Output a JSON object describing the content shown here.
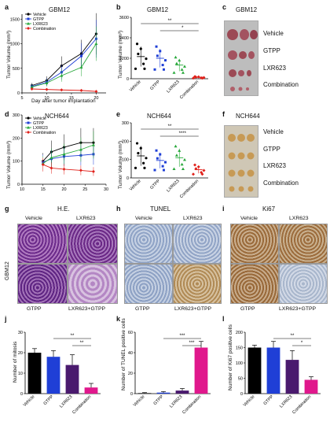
{
  "panel_labels": [
    "a",
    "b",
    "c",
    "d",
    "e",
    "f",
    "g",
    "h",
    "i",
    "j",
    "k",
    "l"
  ],
  "a": {
    "title": "GBM12",
    "ylabel": "Tumor Volume (mm³)",
    "xlabel": "Day after tumor implantation",
    "yticks": [
      "0",
      "500",
      "1000",
      "1500"
    ],
    "xticks": [
      "5",
      "10",
      "15",
      "20"
    ],
    "legend": [
      "Vehicle",
      "GTPP",
      "LXR623",
      "Combination"
    ]
  },
  "b": {
    "title": "GBM12",
    "ylabel": "Tumor Volume (mm³)",
    "yticks": [
      "0",
      "1200",
      "2400",
      "3600"
    ],
    "groups": [
      "Vehicle",
      "GTPP",
      "LXR623",
      "Combination"
    ],
    "sig": [
      "**",
      "*"
    ]
  },
  "c": {
    "title": "GBM12",
    "rows": [
      "Vehicle",
      "GTPP",
      "LXR623",
      "Combination"
    ]
  },
  "d": {
    "title": "NCH644",
    "ylabel": "Tumor Volume (mm³)",
    "yticks": [
      "0",
      "100",
      "200",
      "300"
    ],
    "xticks": [
      "10",
      "15",
      "20",
      "25",
      "30"
    ],
    "legend": [
      "Vehicle",
      "GTPP",
      "LXR623",
      "Combination"
    ]
  },
  "e": {
    "title": "NCH644",
    "ylabel": "Tumor Volume (mm³)",
    "yticks": [
      "0",
      "100",
      "200",
      "300"
    ],
    "groups": [
      "Vehicle",
      "GTPP",
      "LXR623",
      "Combination"
    ],
    "sig": [
      "**",
      "****"
    ]
  },
  "f": {
    "title": "NCH644",
    "rows": [
      "Vehicle",
      "GTPP",
      "LXR623",
      "Combination"
    ]
  },
  "g": {
    "title": "H.E.",
    "col_top": [
      "Vehicle",
      "LXR623"
    ],
    "col_bottom": [
      "GTPP",
      "LXR623+GTPP"
    ],
    "side": "GBM12"
  },
  "h": {
    "title": "TUNEL",
    "col_top": [
      "Vehicle",
      "LXR623"
    ],
    "col_bottom": [
      "GTPP",
      "LXR623+GTPP"
    ]
  },
  "i": {
    "title": "Ki67",
    "col_top": [
      "Vehicle",
      "LXR623"
    ],
    "col_bottom": [
      "GTPP",
      "LXR623+GTPP"
    ]
  },
  "j": {
    "ylabel": "Number of mitosis",
    "yticks": [
      "0",
      "10",
      "20",
      "30"
    ],
    "groups": [
      "Vehicle",
      "GTPP",
      "LXR623",
      "Combination"
    ],
    "sig": [
      "**",
      "**"
    ]
  },
  "k": {
    "ylabel": "Number of TUNEL positive cells",
    "yticks": [
      "0",
      "20",
      "40",
      "60"
    ],
    "groups": [
      "Vehicle",
      "GTPP",
      "LXR623",
      "Combination"
    ],
    "sig": [
      "***",
      "***"
    ]
  },
  "l": {
    "ylabel": "Number of Ki67 positive cells",
    "yticks": [
      "0",
      "50",
      "100",
      "150",
      "200"
    ],
    "groups": [
      "Vehicle",
      "GTPP",
      "LXR623",
      "Combination"
    ],
    "sig": [
      "**",
      "*"
    ]
  },
  "colors": {
    "vehicle": "#000000",
    "gtpp": "#1f3fd6",
    "lxr623": "#27a83a",
    "combination": "#e0201a",
    "bar_comb": "#e0188c"
  },
  "chart_data": [
    {
      "type": "line",
      "panel": "a",
      "x": [
        7,
        10,
        13,
        17,
        20
      ],
      "series": [
        {
          "name": "Vehicle",
          "values": [
            150,
            250,
            550,
            800,
            1200
          ]
        },
        {
          "name": "GTPP",
          "values": [
            130,
            220,
            420,
            750,
            1100
          ]
        },
        {
          "name": "LXR623",
          "values": [
            120,
            200,
            350,
            520,
            1000
          ]
        },
        {
          "name": "Combination",
          "values": [
            80,
            70,
            60,
            50,
            30
          ]
        }
      ],
      "ylim": [
        0,
        1600
      ],
      "xlim": [
        5,
        22
      ]
    },
    {
      "type": "scatter",
      "panel": "b",
      "categories": [
        "Vehicle",
        "GTPP",
        "LXR623",
        "Combination"
      ],
      "values": [
        1300,
        1200,
        800,
        80
      ],
      "ylim": [
        0,
        3600
      ]
    },
    {
      "type": "line",
      "panel": "d",
      "x": [
        15,
        17,
        20,
        24,
        27
      ],
      "series": [
        {
          "name": "Vehicle",
          "values": [
            100,
            140,
            160,
            180,
            180
          ]
        },
        {
          "name": "GTPP",
          "values": [
            95,
            110,
            120,
            125,
            130
          ]
        },
        {
          "name": "LXR623",
          "values": [
            90,
            115,
            130,
            150,
            170
          ]
        },
        {
          "name": "Combination",
          "values": [
            85,
            70,
            65,
            60,
            55
          ]
        }
      ],
      "ylim": [
        0,
        300
      ],
      "xlim": [
        10,
        30
      ]
    },
    {
      "type": "scatter",
      "panel": "e",
      "categories": [
        "Vehicle",
        "GTPP",
        "LXR623",
        "Combination"
      ],
      "values": [
        120,
        95,
        110,
        45
      ],
      "ylim": [
        0,
        300
      ]
    },
    {
      "type": "bar",
      "panel": "j",
      "categories": [
        "Vehicle",
        "GTPP",
        "LXR623",
        "Combination"
      ],
      "values": [
        20,
        18,
        14,
        3
      ],
      "errors": [
        2,
        3,
        5,
        2
      ],
      "ylim": [
        0,
        30
      ]
    },
    {
      "type": "bar",
      "panel": "k",
      "categories": [
        "Vehicle",
        "GTPP",
        "LXR623",
        "Combination"
      ],
      "values": [
        0.5,
        1,
        3,
        45
      ],
      "errors": [
        0.5,
        1,
        2,
        6
      ],
      "ylim": [
        0,
        60
      ]
    },
    {
      "type": "bar",
      "panel": "l",
      "categories": [
        "Vehicle",
        "GTPP",
        "LXR623",
        "Combination"
      ],
      "values": [
        150,
        150,
        110,
        45
      ],
      "errors": [
        8,
        20,
        30,
        10
      ],
      "ylim": [
        0,
        200
      ]
    }
  ]
}
